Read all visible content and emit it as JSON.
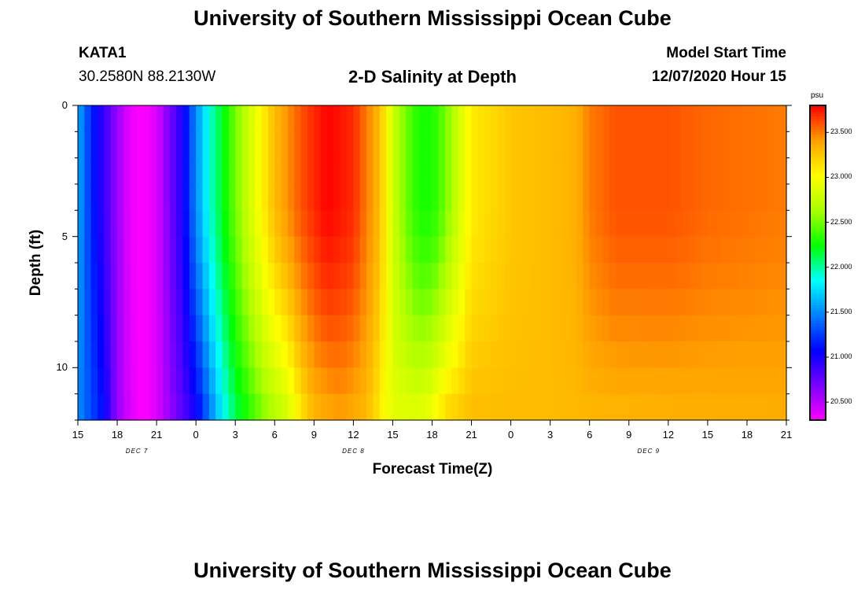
{
  "page": {
    "title_top": "University of Southern Mississippi Ocean Cube",
    "title_bottom": "University of Southern Mississippi Ocean Cube"
  },
  "header": {
    "station": "KATA1",
    "coords": "30.2580N 88.2130W",
    "plot_title": "2-D Salinity at Depth",
    "start_label": "Model Start Time",
    "start_value": "12/07/2020 Hour 15"
  },
  "chart_data": {
    "type": "heatmap",
    "title": "2-D Salinity at Depth",
    "xlabel": "Forecast Time(Z)",
    "ylabel": "Depth (ft)",
    "units": "psu",
    "x_hours": [
      0,
      3,
      6,
      9,
      12,
      15,
      18,
      21,
      24,
      27,
      30,
      33,
      36,
      39,
      42,
      45,
      48,
      51,
      54
    ],
    "x_tick_labels": [
      "15",
      "18",
      "21",
      "0",
      "3",
      "6",
      "9",
      "12",
      "15",
      "18",
      "21",
      "0",
      "3",
      "6",
      "9",
      "12",
      "15",
      "18",
      "21"
    ],
    "day_labels": [
      {
        "label": "DEC 7",
        "hour": 4.5
      },
      {
        "label": "DEC 8",
        "hour": 21
      },
      {
        "label": "DEC 9",
        "hour": 43.5
      }
    ],
    "y_ticks": [
      0,
      5,
      10
    ],
    "ylim": [
      0,
      12
    ],
    "xlim": [
      0,
      54
    ],
    "colorbar": {
      "min": 20.3,
      "max": 23.8,
      "ticks": [
        20.5,
        21.0,
        21.5,
        22.0,
        22.5,
        23.0,
        23.5
      ],
      "tick_labels": [
        "20.500",
        "21.000",
        "21.500",
        "22.000",
        "22.500",
        "23.000",
        "23.500"
      ]
    },
    "surface_salinity_by_hour": [
      [
        0,
        21.6
      ],
      [
        1,
        21.2
      ],
      [
        2,
        20.9
      ],
      [
        3,
        20.6
      ],
      [
        4,
        20.35
      ],
      [
        5,
        20.3
      ],
      [
        6,
        20.4
      ],
      [
        7,
        20.7
      ],
      [
        8,
        21.0
      ],
      [
        9,
        21.5
      ],
      [
        10,
        21.9
      ],
      [
        11,
        22.2
      ],
      [
        12,
        22.5
      ],
      [
        13,
        22.8
      ],
      [
        15,
        23.3
      ],
      [
        17,
        23.6
      ],
      [
        19,
        23.8
      ],
      [
        21,
        23.7
      ],
      [
        23,
        23.3
      ],
      [
        24,
        22.8
      ],
      [
        25,
        22.5
      ],
      [
        26,
        22.3
      ],
      [
        27,
        22.3
      ],
      [
        28,
        22.5
      ],
      [
        29,
        22.8
      ],
      [
        30,
        23.1
      ],
      [
        33,
        23.25
      ],
      [
        36,
        23.3
      ],
      [
        38,
        23.35
      ],
      [
        39,
        23.5
      ],
      [
        41,
        23.6
      ],
      [
        45,
        23.6
      ],
      [
        48,
        23.55
      ],
      [
        54,
        23.5
      ]
    ],
    "bottom_salinity_by_hour": [
      [
        0,
        21.5
      ],
      [
        2,
        21.1
      ],
      [
        3,
        20.6
      ],
      [
        4,
        20.4
      ],
      [
        5,
        20.3
      ],
      [
        6,
        20.4
      ],
      [
        8,
        20.8
      ],
      [
        9,
        21.0
      ],
      [
        10,
        21.4
      ],
      [
        11,
        21.8
      ],
      [
        12,
        22.1
      ],
      [
        14,
        22.5
      ],
      [
        16,
        22.8
      ],
      [
        17,
        23.1
      ],
      [
        18,
        23.3
      ],
      [
        20,
        23.4
      ],
      [
        22,
        23.3
      ],
      [
        23,
        23.1
      ],
      [
        24,
        22.9
      ],
      [
        26,
        22.9
      ],
      [
        27,
        23.0
      ],
      [
        28,
        23.2
      ],
      [
        30,
        23.3
      ],
      [
        36,
        23.3
      ],
      [
        54,
        23.35
      ]
    ]
  },
  "colors": {
    "background": "#ffffff",
    "axis": "#000000",
    "colormap": [
      "#ff00ff",
      "#7b00ff",
      "#0000ff",
      "#0080ff",
      "#00ffff",
      "#00ff00",
      "#aaff00",
      "#ffff00",
      "#ffa000",
      "#ff0000"
    ]
  }
}
